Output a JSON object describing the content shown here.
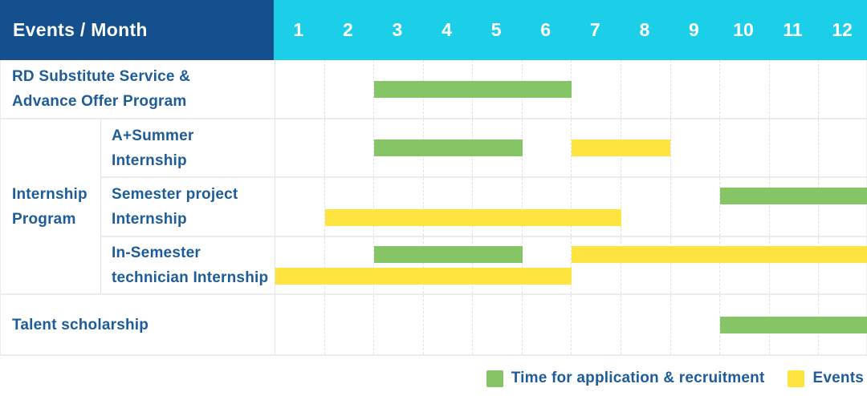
{
  "header": {
    "title": "Events / Month",
    "months": [
      "1",
      "2",
      "3",
      "4",
      "5",
      "6",
      "7",
      "8",
      "9",
      "10",
      "11",
      "12"
    ]
  },
  "labels": {
    "row1": {
      "line1": "RD Substitute Service &",
      "line2": "Advance Offer Program"
    },
    "group": {
      "line1": "Internship",
      "line2": "Program"
    },
    "sub1": {
      "line1": "A+Summer",
      "line2": "Internship"
    },
    "sub2": {
      "line1": "Semester project",
      "line2": "Internship"
    },
    "sub3": {
      "line1": "In-Semester",
      "line2": "technician Internship"
    },
    "row5": {
      "line1": "Talent scholarship"
    }
  },
  "legend": {
    "items": [
      {
        "swatch": "green",
        "label": "Time for application & recruitment"
      },
      {
        "swatch": "yellow",
        "label": "Events"
      }
    ]
  },
  "colors": {
    "header_bg": "#14508D",
    "months_bg": "#1BCFE9",
    "label_text": "#1E5C99",
    "green": "#85C565",
    "yellow": "#FFE33E"
  },
  "chart_data": {
    "type": "gantt",
    "x_axis": {
      "label": "Month",
      "categories": [
        1,
        2,
        3,
        4,
        5,
        6,
        7,
        8,
        9,
        10,
        11,
        12
      ]
    },
    "legend": {
      "green": "Time for application & recruitment",
      "yellow": "Events"
    },
    "rows": [
      {
        "label": "RD Substitute Service & Advance Offer Program",
        "group": null,
        "lines": [
          [
            {
              "color": "green",
              "start": 3,
              "end": 6
            }
          ]
        ]
      },
      {
        "label": "A+Summer Internship",
        "group": "Internship Program",
        "lines": [
          [
            {
              "color": "green",
              "start": 3,
              "end": 5
            },
            {
              "color": "yellow",
              "start": 7,
              "end": 8
            }
          ]
        ]
      },
      {
        "label": "Semester project Internship",
        "group": "Internship Program",
        "lines": [
          [
            {
              "color": "green",
              "start": 10,
              "end": 12
            }
          ],
          [
            {
              "color": "yellow",
              "start": 2,
              "end": 7
            }
          ]
        ]
      },
      {
        "label": "In-Semester technician Internship",
        "group": "Internship Program",
        "lines": [
          [
            {
              "color": "green",
              "start": 3,
              "end": 5
            },
            {
              "color": "yellow",
              "start": 7,
              "end": 12
            }
          ],
          [
            {
              "color": "yellow",
              "start": 1,
              "end": 6
            }
          ]
        ]
      },
      {
        "label": "Talent scholarship",
        "group": null,
        "lines": [
          [
            {
              "color": "green",
              "start": 10,
              "end": 12
            }
          ]
        ]
      }
    ]
  }
}
